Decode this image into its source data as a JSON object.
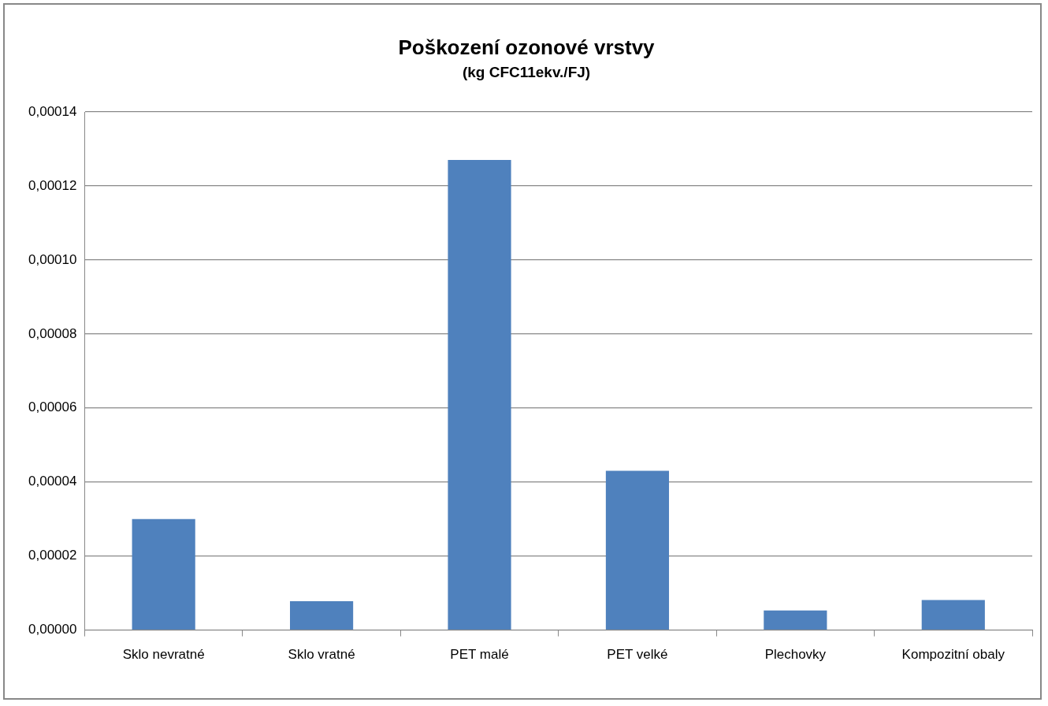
{
  "chart_data": {
    "type": "bar",
    "title": "Poškození ozonové vrstvy",
    "subtitle": "(kg CFC11ekv./FJ)",
    "categories": [
      "Sklo nevratné",
      "Sklo vratné",
      "PET malé",
      "PET velké",
      "Plechovky",
      "Kompozitní obaly"
    ],
    "values": [
      3e-05,
      7.8e-06,
      0.000127,
      4.3e-05,
      5.3e-06,
      8.1e-06
    ],
    "color": "#4f81bd",
    "ylim": [
      0,
      0.00014
    ],
    "yticks": [
      {
        "value": 0,
        "label": "0,00000"
      },
      {
        "value": 2e-05,
        "label": "0,00002"
      },
      {
        "value": 4e-05,
        "label": "0,00004"
      },
      {
        "value": 6e-05,
        "label": "0,00006"
      },
      {
        "value": 8e-05,
        "label": "0,00008"
      },
      {
        "value": 0.0001,
        "label": "0,00010"
      },
      {
        "value": 0.00012,
        "label": "0,00012"
      },
      {
        "value": 0.00014,
        "label": "0,00014"
      }
    ],
    "grid": "y"
  }
}
